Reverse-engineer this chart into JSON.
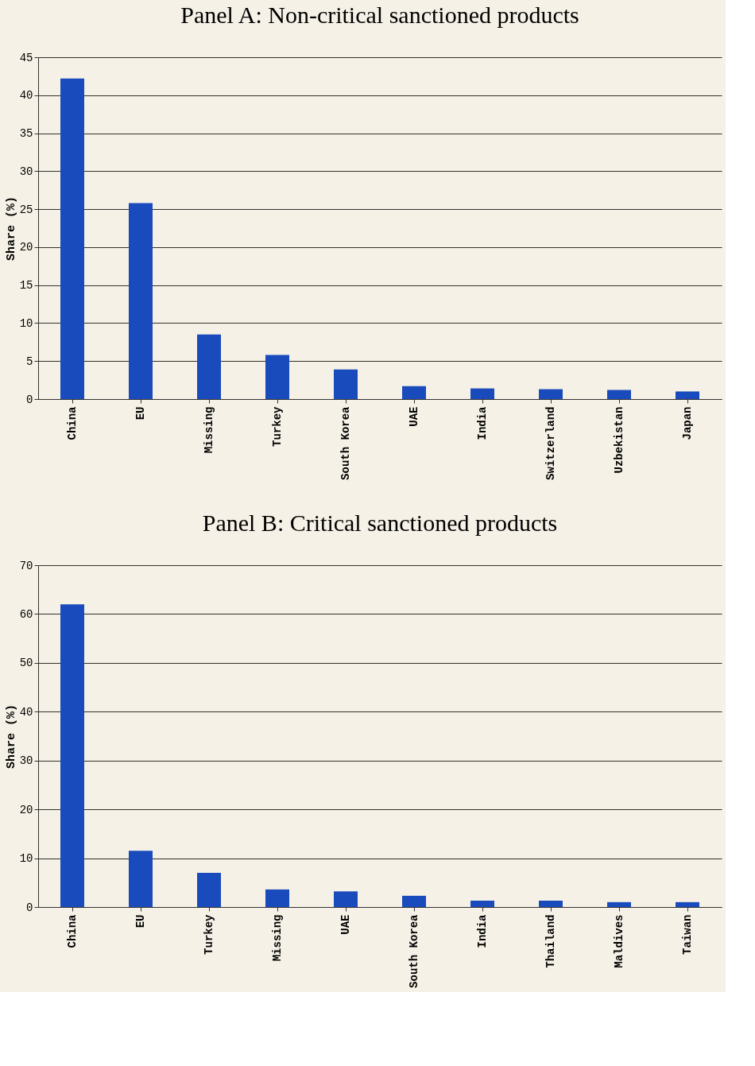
{
  "chart_data": [
    {
      "type": "bar",
      "title": "Panel A: Non-critical sanctioned products",
      "ylabel": "Share (%)",
      "categories": [
        "China",
        "EU",
        "Missing",
        "Turkey",
        "South Korea",
        "UAE",
        "India",
        "Switzerland",
        "Uzbekistan",
        "Japan"
      ],
      "values": [
        42.2,
        25.8,
        8.5,
        5.8,
        3.9,
        1.7,
        1.4,
        1.3,
        1.2,
        1.0
      ],
      "color": "#1a4bbd",
      "ylim": [
        0,
        45
      ],
      "yticks": [
        0,
        5,
        10,
        15,
        20,
        25,
        30,
        35,
        40,
        45
      ],
      "grid": "y"
    },
    {
      "type": "bar",
      "title": "Panel B: Critical sanctioned products",
      "ylabel": "Share (%)",
      "categories": [
        "China",
        "EU",
        "Turkey",
        "Missing",
        "UAE",
        "South Korea",
        "India",
        "Thailand",
        "Maldives",
        "Taiwan"
      ],
      "values": [
        62.0,
        11.5,
        7.0,
        3.6,
        3.2,
        2.3,
        1.3,
        1.3,
        1.0,
        1.0
      ],
      "color": "#1a4bbd",
      "ylim": [
        0,
        70
      ],
      "yticks": [
        0,
        10,
        20,
        30,
        40,
        50,
        60,
        70
      ],
      "grid": "y"
    }
  ]
}
